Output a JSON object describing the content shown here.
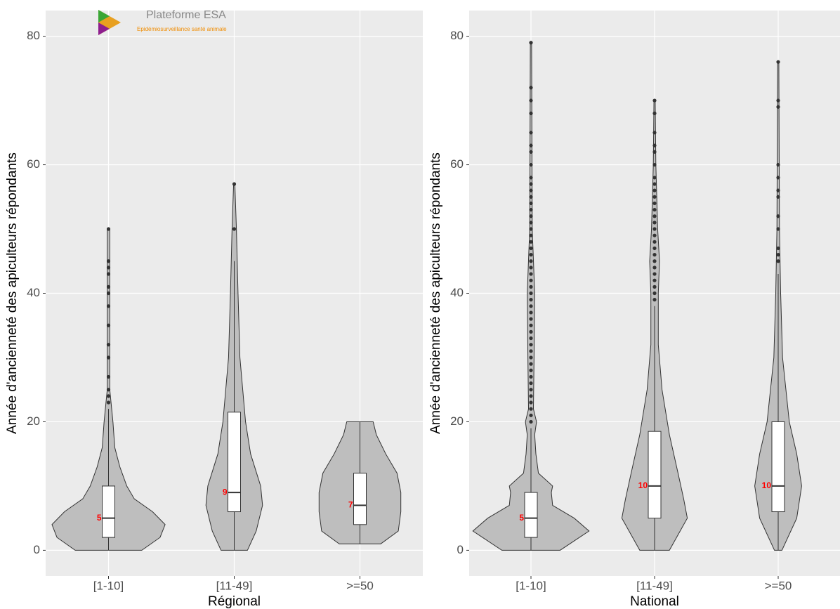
{
  "logo": {
    "title": "Plateforme ESA",
    "subtitle": "Epidémiosurveillance santé animale"
  },
  "chart_data": [
    {
      "type": "violin",
      "xlabel": "Régional",
      "ylabel": "Année d'ancienneté des apiculteurs répondants",
      "categories": [
        "[1-10]",
        "[11-49]",
        ">=50"
      ],
      "color": "#bebebe",
      "ylim": [
        -4,
        84
      ],
      "yticks": [
        0,
        20,
        40,
        60,
        80
      ],
      "grid": true,
      "boxes": [
        {
          "min": 0,
          "q1": 2,
          "median": 5,
          "q3": 10,
          "max": 22,
          "outliers": [
            23,
            24,
            25,
            27,
            30,
            32,
            35,
            38,
            40,
            41,
            43,
            44,
            45,
            50
          ]
        },
        {
          "min": 0,
          "q1": 6,
          "median": 9,
          "q3": 21.5,
          "max": 45,
          "outliers": [
            50,
            57
          ]
        },
        {
          "min": 1,
          "q1": 4,
          "median": 7,
          "q3": 12,
          "max": 20,
          "outliers": []
        }
      ],
      "violins": [
        {
          "y": [
            0,
            2,
            4,
            6,
            8,
            10,
            13,
            16,
            20,
            22,
            25,
            50
          ],
          "width": [
            0.53,
            0.82,
            0.9,
            0.7,
            0.41,
            0.29,
            0.18,
            0.1,
            0.07,
            0.05,
            0.02,
            0.02
          ]
        },
        {
          "y": [
            0,
            3,
            7,
            10,
            15,
            20,
            30,
            40,
            50,
            57
          ],
          "width": [
            0.21,
            0.35,
            0.45,
            0.42,
            0.26,
            0.18,
            0.09,
            0.06,
            0.035,
            0.01
          ]
        },
        {
          "y": [
            1,
            3,
            6,
            9,
            12,
            15,
            18,
            20
          ],
          "width": [
            0.33,
            0.61,
            0.65,
            0.65,
            0.59,
            0.41,
            0.26,
            0.21
          ]
        }
      ]
    },
    {
      "type": "violin",
      "xlabel": "National",
      "ylabel": "Année d'ancienneté des apiculteurs répondants",
      "categories": [
        "[1-10]",
        "[11-49]",
        ">=50"
      ],
      "color": "#bebebe",
      "ylim": [
        -4,
        84
      ],
      "yticks": [
        0,
        20,
        40,
        60,
        80
      ],
      "grid": true,
      "boxes": [
        {
          "min": 0,
          "q1": 2,
          "median": 5,
          "q3": 9,
          "max": 19,
          "outliers": [
            20,
            21,
            22,
            23,
            24,
            25,
            26,
            27,
            28,
            29,
            30,
            31,
            32,
            33,
            34,
            35,
            36,
            37,
            38,
            39,
            40,
            41,
            42,
            43,
            44,
            45,
            46,
            47,
            48,
            49,
            50,
            51,
            52,
            53,
            54,
            55,
            56,
            57,
            58,
            60,
            62,
            63,
            65,
            68,
            70,
            72,
            79
          ]
        },
        {
          "min": 0,
          "q1": 5,
          "median": 10,
          "q3": 18.5,
          "max": 38,
          "outliers": [
            39,
            40,
            41,
            42,
            43,
            44,
            45,
            46,
            47,
            48,
            49,
            50,
            51,
            52,
            53,
            54,
            55,
            56,
            57,
            58,
            60,
            62,
            63,
            65,
            68,
            70
          ]
        },
        {
          "min": 0,
          "q1": 6,
          "median": 10,
          "q3": 20,
          "max": 43,
          "outliers": [
            45,
            46,
            47,
            50,
            52,
            55,
            56,
            58,
            60,
            69,
            70,
            76
          ]
        }
      ],
      "violins": [
        {
          "y": [
            0,
            3,
            5,
            7,
            9,
            10,
            12,
            15,
            18,
            20,
            22,
            30,
            40,
            50,
            79
          ],
          "width": [
            0.47,
            0.94,
            0.7,
            0.35,
            0.33,
            0.35,
            0.12,
            0.08,
            0.06,
            0.09,
            0.04,
            0.05,
            0.06,
            0.02,
            0.01
          ]
        },
        {
          "y": [
            0,
            5,
            8,
            12,
            18,
            25,
            32,
            40,
            45,
            50,
            60,
            70
          ],
          "width": [
            0.24,
            0.53,
            0.47,
            0.38,
            0.24,
            0.12,
            0.06,
            0.06,
            0.08,
            0.05,
            0.02,
            0.01
          ]
        },
        {
          "y": [
            0,
            5,
            10,
            15,
            20,
            30,
            40,
            50,
            76
          ],
          "width": [
            0.06,
            0.3,
            0.38,
            0.3,
            0.18,
            0.07,
            0.04,
            0.02,
            0.01
          ]
        }
      ]
    }
  ]
}
